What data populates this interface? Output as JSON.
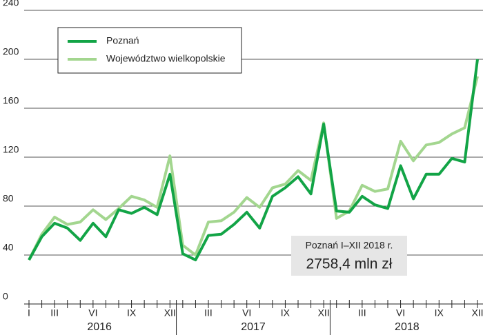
{
  "chart_data": {
    "type": "line",
    "categories": [
      "I",
      null,
      "III",
      null,
      null,
      "VI",
      null,
      null,
      "IX",
      null,
      null,
      "XII",
      null,
      null,
      "III",
      null,
      null,
      "VI",
      null,
      null,
      "IX",
      null,
      null,
      "XII",
      null,
      null,
      "III",
      null,
      null,
      "VI",
      null,
      null,
      "IX",
      null,
      null,
      "XII"
    ],
    "years": [
      "2016",
      "2017",
      "2018"
    ],
    "series": [
      {
        "name": "Województwo wielkopolskie",
        "color": "#a3d68f",
        "values": [
          36,
          57,
          71,
          65,
          67,
          77,
          69,
          78,
          88,
          85,
          79,
          121,
          48,
          40,
          67,
          68,
          75,
          87,
          79,
          95,
          98,
          109,
          101,
          148,
          70,
          76,
          97,
          92,
          94,
          133,
          117,
          130,
          132,
          139,
          144,
          186
        ]
      },
      {
        "name": "Poznań",
        "color": "#12a446",
        "values": [
          36,
          55,
          66,
          62,
          52,
          66,
          55,
          77,
          74,
          79,
          73,
          106,
          41,
          36,
          56,
          57,
          65,
          75,
          62,
          88,
          95,
          104,
          90,
          147,
          76,
          75,
          88,
          81,
          78,
          113,
          86,
          106,
          106,
          119,
          116,
          200
        ]
      }
    ],
    "legend_order": [
      1,
      0
    ],
    "ylim": [
      0,
      240
    ],
    "yticks": [
      0,
      40,
      80,
      120,
      160,
      200,
      240
    ],
    "grid": true,
    "annotation": {
      "title": "Poznań I–XII 2018 r.",
      "value": "2758,4 mln zł"
    }
  }
}
